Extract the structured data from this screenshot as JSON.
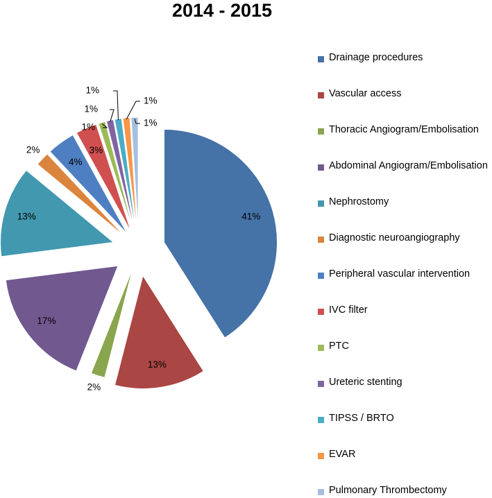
{
  "chart_data": {
    "type": "pie",
    "title": "2014 - 2015",
    "legend_position": "right",
    "slices": [
      {
        "label": "Drainage procedures",
        "value": 41,
        "display": "41%",
        "color": "#4572A7"
      },
      {
        "label": "Vascular access",
        "value": 13,
        "display": "13%",
        "color": "#AA4643"
      },
      {
        "label": "Thoracic Angiogram/Embolisation",
        "value": 2,
        "display": "2%",
        "color": "#89A54E"
      },
      {
        "label": "Abdominal Angiogram/Embolisation",
        "value": 17,
        "display": "17%",
        "color": "#71588F"
      },
      {
        "label": "Nephrostomy",
        "value": 13,
        "display": "13%",
        "color": "#4198AF"
      },
      {
        "label": "Diagnostic neuroangiography",
        "value": 2,
        "display": "2%",
        "color": "#DB843D"
      },
      {
        "label": "Peripheral vascular intervention",
        "value": 4,
        "display": "4%",
        "color": "#4E7FC2"
      },
      {
        "label": "IVC filter",
        "value": 3,
        "display": "3%",
        "color": "#D05050"
      },
      {
        "label": "PTC",
        "value": 1,
        "display": "1%",
        "color": "#9BBB59"
      },
      {
        "label": "Ureteric stenting",
        "value": 1,
        "display": "1%",
        "color": "#8064A2"
      },
      {
        "label": "TIPSS / BRTO",
        "value": 1,
        "display": "1%",
        "color": "#4BACC6"
      },
      {
        "label": "EVAR",
        "value": 1,
        "display": "1%",
        "color": "#F79646"
      },
      {
        "label": "Pulmonary Thrombectomy",
        "value": 1,
        "display": "1%",
        "color": "#A5BFE0"
      }
    ]
  }
}
